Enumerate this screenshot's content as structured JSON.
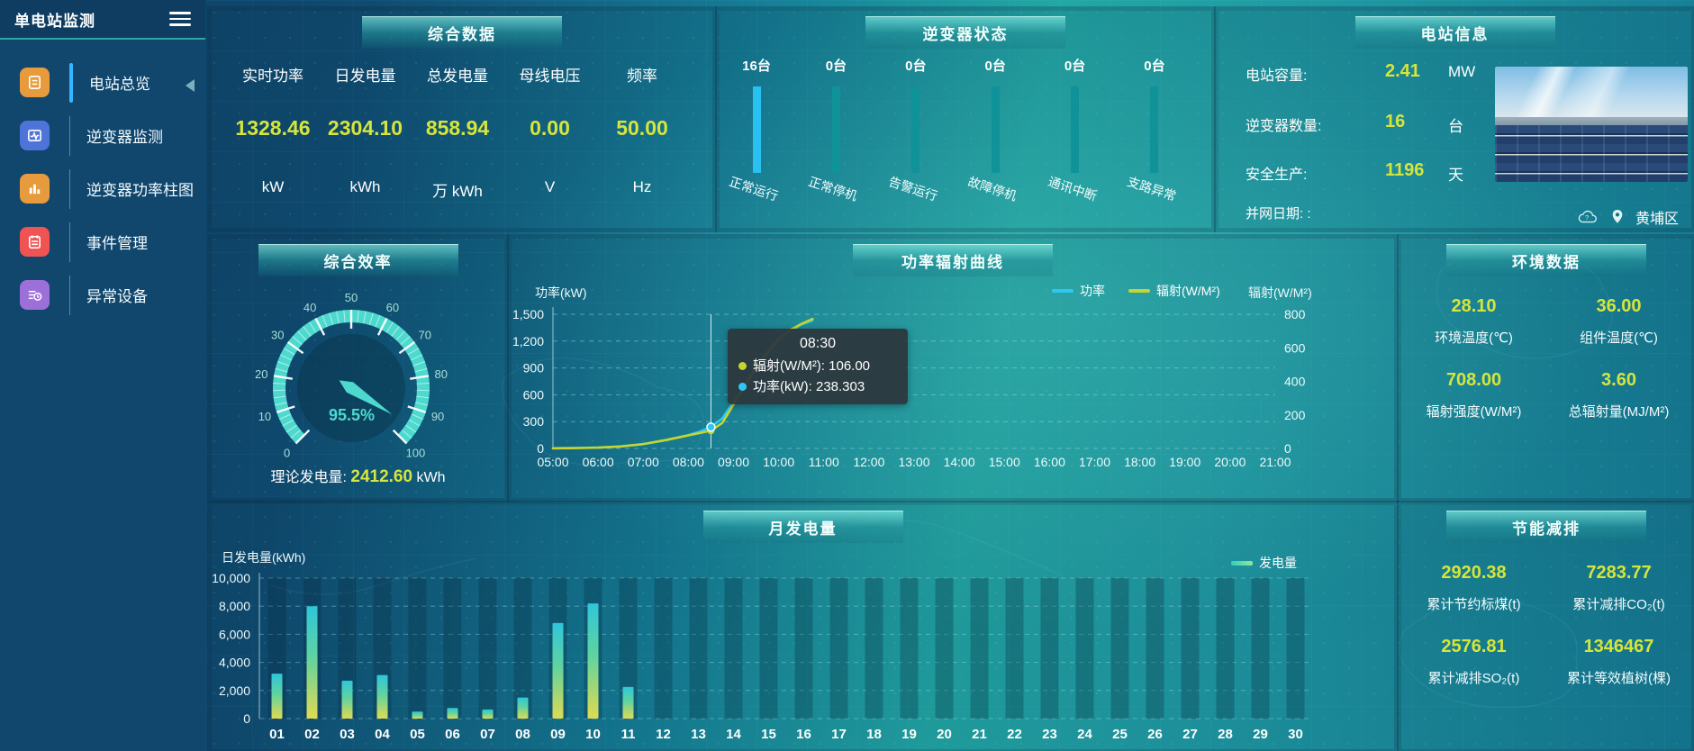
{
  "app": {
    "title": "单电站监测"
  },
  "sidebar": {
    "items": [
      {
        "label": "电站总览",
        "icon": "report-icon",
        "color": "#e89b3c",
        "active": true
      },
      {
        "label": "逆变器监测",
        "icon": "monitor-icon",
        "color": "#4f74d9",
        "active": false
      },
      {
        "label": "逆变器功率柱图",
        "icon": "bar-chart-icon",
        "color": "#e89b3c",
        "active": false
      },
      {
        "label": "事件管理",
        "icon": "event-icon",
        "color": "#f15353",
        "active": false
      },
      {
        "label": "异常设备",
        "icon": "device-alert-icon",
        "color": "#9d6fd8",
        "active": false
      }
    ]
  },
  "summary": {
    "title": "综合数据",
    "metrics": [
      {
        "label": "实时功率",
        "value": "1328.46",
        "unit": "kW"
      },
      {
        "label": "日发电量",
        "value": "2304.10",
        "unit": "kWh"
      },
      {
        "label": "总发电量",
        "value": "858.94",
        "unit": "万 kWh"
      },
      {
        "label": "母线电压",
        "value": "0.00",
        "unit": "V"
      },
      {
        "label": "频率",
        "value": "50.00",
        "unit": "Hz"
      }
    ]
  },
  "inverter_status": {
    "title": "逆变器状态",
    "bars": [
      {
        "count": "16台",
        "label": "正常运行",
        "highlight": true
      },
      {
        "count": "0台",
        "label": "正常停机",
        "highlight": false
      },
      {
        "count": "0台",
        "label": "告警运行",
        "highlight": false
      },
      {
        "count": "0台",
        "label": "故障停机",
        "highlight": false
      },
      {
        "count": "0台",
        "label": "通讯中断",
        "highlight": false
      },
      {
        "count": "0台",
        "label": "支路异常",
        "highlight": false
      }
    ]
  },
  "station_info": {
    "title": "电站信息",
    "rows": [
      {
        "label": "电站容量:",
        "value": "2.41",
        "unit": "MW"
      },
      {
        "label": "逆变器数量:",
        "value": "16",
        "unit": "台"
      },
      {
        "label": "安全生产:",
        "value": "1196",
        "unit": "天"
      }
    ],
    "grid_date_label": "并网日期:  :",
    "location": "黄埔区"
  },
  "efficiency": {
    "title": "综合效率",
    "value_label": "95.5%",
    "theory_label": "理论发电量:",
    "theory_value": "2412.60",
    "theory_unit": "kWh"
  },
  "env_data": {
    "title": "环境数据",
    "items": [
      {
        "value": "28.10",
        "label": "环境温度(℃)"
      },
      {
        "value": "36.00",
        "label": "组件温度(℃)"
      },
      {
        "value": "708.00",
        "label": "辐射强度(W/M²)"
      },
      {
        "value": "3.60",
        "label": "总辐射量(MJ/M²)"
      }
    ]
  },
  "energy_saving": {
    "title": "节能减排",
    "items": [
      {
        "value": "2920.38",
        "label": "累计节约标煤(t)"
      },
      {
        "value": "7283.77",
        "label": "累计减排CO₂(t)"
      },
      {
        "value": "2576.81",
        "label": "累计减排SO₂(t)"
      },
      {
        "value": "1346467",
        "label": "累计等效植树(棵)"
      }
    ]
  },
  "colors": {
    "value_yellow": "#d6e53c",
    "power_line": "#2ec7f5",
    "radiation_line": "#c6d52f",
    "status_bar_active": "#29c1f2",
    "status_bar_idle": "#0f9398",
    "gauge": "#4ed9cf"
  },
  "chart_data": [
    {
      "id": "power_radiation_curve",
      "type": "line",
      "title": "功率辐射曲线",
      "x_range": [
        5,
        21
      ],
      "x_ticks": [
        "05:00",
        "06:00",
        "07:00",
        "08:00",
        "09:00",
        "10:00",
        "11:00",
        "12:00",
        "13:00",
        "14:00",
        "15:00",
        "16:00",
        "17:00",
        "18:00",
        "19:00",
        "20:00",
        "21:00"
      ],
      "x_hours": [
        5,
        5.5,
        6,
        6.5,
        7,
        7.5,
        8,
        8.25,
        8.5,
        8.75,
        9,
        9.25,
        9.5,
        9.75,
        10,
        10.25,
        10.5,
        10.75
      ],
      "series": [
        {
          "name": "功率",
          "axis": "left",
          "unit": "kW",
          "color": "#2ec7f5",
          "values": [
            2,
            5,
            10,
            22,
            48,
            92,
            148,
            188,
            238.3,
            335,
            520,
            705,
            900,
            1070,
            1210,
            1310,
            1385,
            1432
          ]
        },
        {
          "name": "辐射",
          "axis": "right",
          "unit": "W/M²",
          "color": "#c6d52f",
          "values": [
            1,
            2,
            5,
            12,
            26,
            50,
            78,
            92,
            106,
            152,
            262,
            375,
            485,
            575,
            652,
            705,
            742,
            772
          ]
        }
      ],
      "left_axis": {
        "label": "功率(kW)",
        "max": 1500,
        "tick_labels": [
          "0",
          "300",
          "600",
          "900",
          "1,200",
          "1,500"
        ]
      },
      "right_axis": {
        "label": "辐射(W/M²)",
        "max": 800,
        "tick_labels": [
          "0",
          "200",
          "400",
          "600",
          "800"
        ]
      },
      "legend": [
        {
          "label": "功率",
          "color": "#2ec7f5"
        },
        {
          "label": "辐射(W/M²)",
          "color": "#c6d52f"
        }
      ],
      "tooltip": {
        "x_hour": 8.5,
        "time": "08:30",
        "rows": [
          {
            "text": "辐射(W/M²): 106.00",
            "color": "#c6d52f"
          },
          {
            "text": "功率(kW): 238.303",
            "color": "#2ec7f5"
          }
        ]
      }
    },
    {
      "id": "monthly_energy",
      "type": "bar",
      "title": "月发电量",
      "ylabel": "日发电量(kWh)",
      "ylim": [
        0,
        10000
      ],
      "y_tick_labels": [
        "0",
        "2,000",
        "4,000",
        "6,000",
        "8,000",
        "10,000"
      ],
      "categories": [
        "01",
        "02",
        "03",
        "04",
        "05",
        "06",
        "07",
        "08",
        "09",
        "10",
        "11",
        "12",
        "13",
        "14",
        "15",
        "16",
        "17",
        "18",
        "19",
        "20",
        "21",
        "22",
        "23",
        "24",
        "25",
        "26",
        "27",
        "28",
        "29",
        "30"
      ],
      "values": [
        3200,
        8000,
        2700,
        3100,
        500,
        750,
        650,
        1500,
        6800,
        8200,
        2250,
        0,
        0,
        0,
        0,
        0,
        0,
        0,
        0,
        0,
        0,
        0,
        0,
        0,
        0,
        0,
        0,
        0,
        0,
        0
      ],
      "legend": [
        {
          "label": "发电量"
        }
      ]
    },
    {
      "id": "inverter_status_bars",
      "type": "bar",
      "categories": [
        "正常运行",
        "正常停机",
        "告警运行",
        "故障停机",
        "通讯中断",
        "支路异常"
      ],
      "values": [
        16,
        0,
        0,
        0,
        0,
        0
      ],
      "unit": "台"
    },
    {
      "id": "efficiency_gauge",
      "type": "gauge",
      "min": 0,
      "max": 100,
      "value": 95.5,
      "color": "#4ed9cf"
    }
  ]
}
